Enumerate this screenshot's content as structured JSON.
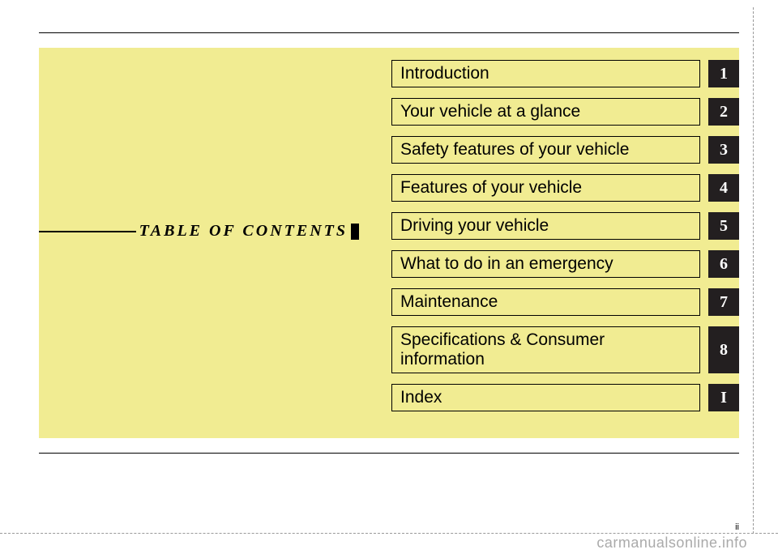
{
  "heading": "TABLE OF CONTENTS",
  "panel_bg": "#f1ec92",
  "tab_bg": "#231f20",
  "tab_text": "#ffffff",
  "border_color": "#000000",
  "entries": [
    {
      "label": "Introduction",
      "tab": "1"
    },
    {
      "label": "Your vehicle at a glance",
      "tab": "2"
    },
    {
      "label": "Safety features of your vehicle",
      "tab": "3"
    },
    {
      "label": "Features of your vehicle",
      "tab": "4"
    },
    {
      "label": "Driving your vehicle",
      "tab": "5"
    },
    {
      "label": "What to do in an emergency",
      "tab": "6"
    },
    {
      "label": "Maintenance",
      "tab": "7"
    },
    {
      "label": "Specifications & Consumer information",
      "tab": "8"
    },
    {
      "label": "Index",
      "tab": "I"
    }
  ],
  "page_number": "ii",
  "watermark": "carmanualsonline.info"
}
